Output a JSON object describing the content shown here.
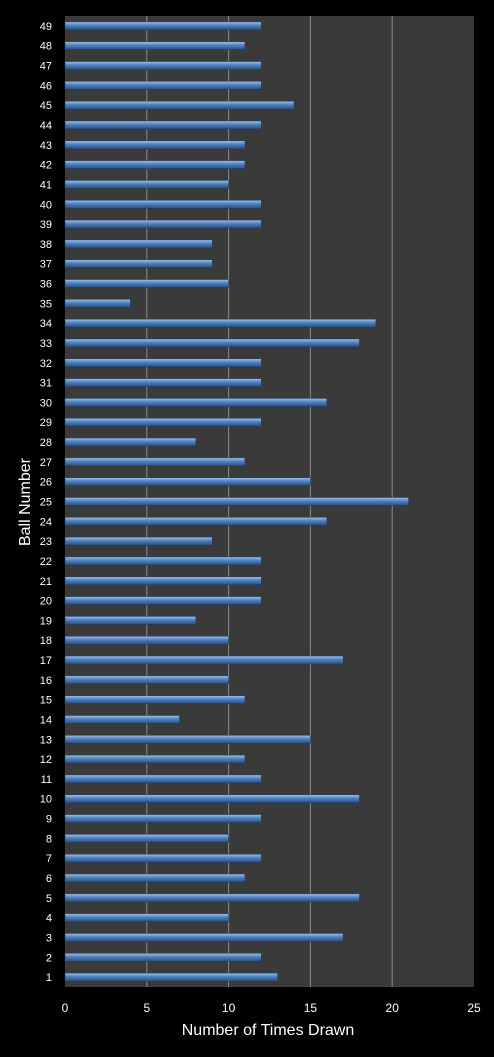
{
  "chart_data": {
    "type": "bar",
    "orientation": "horizontal",
    "xlabel": "Number of Times Drawn",
    "ylabel": "Ball Number",
    "xlim": [
      0,
      25
    ],
    "xticks": [
      0,
      5,
      10,
      15,
      20,
      25
    ],
    "grid": true,
    "colors": {
      "background": "#000000",
      "plot_area": "#3a3a3a",
      "gridline": "#8a8a8a",
      "bar_top": "#9cc3f0",
      "bar_mid": "#4f81bd",
      "bar_bottom": "#2a4f7f",
      "text": "#ffffff"
    },
    "categories": [
      "1",
      "2",
      "3",
      "4",
      "5",
      "6",
      "7",
      "8",
      "9",
      "10",
      "11",
      "12",
      "13",
      "14",
      "15",
      "16",
      "17",
      "18",
      "19",
      "20",
      "21",
      "22",
      "23",
      "24",
      "25",
      "26",
      "27",
      "28",
      "29",
      "30",
      "31",
      "32",
      "33",
      "34",
      "35",
      "36",
      "37",
      "38",
      "39",
      "40",
      "41",
      "42",
      "43",
      "44",
      "45",
      "46",
      "47",
      "48",
      "49"
    ],
    "values": [
      13,
      12,
      17,
      10,
      18,
      11,
      12,
      10,
      12,
      18,
      12,
      11,
      15,
      7,
      11,
      10,
      17,
      10,
      8,
      12,
      12,
      12,
      9,
      16,
      21,
      15,
      11,
      8,
      12,
      16,
      12,
      12,
      18,
      19,
      4,
      10,
      9,
      9,
      12,
      12,
      10,
      11,
      11,
      12,
      14,
      12,
      12,
      11,
      12
    ]
  }
}
